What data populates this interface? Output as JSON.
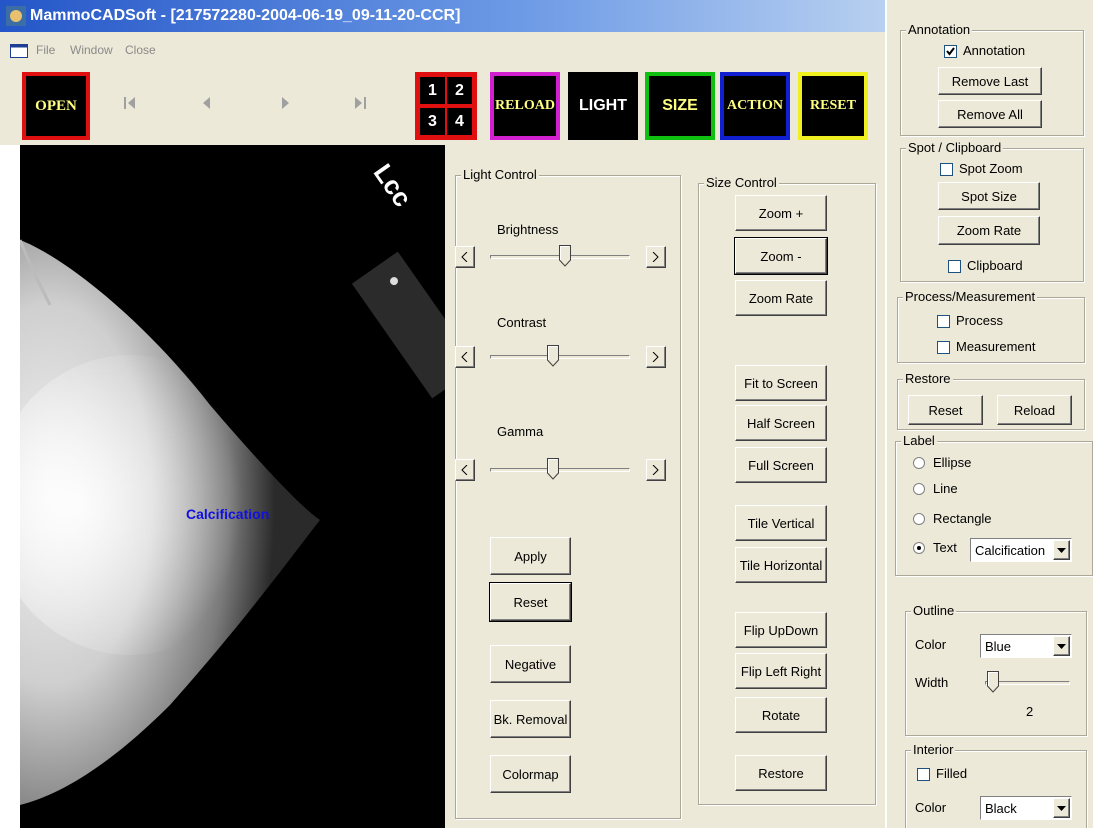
{
  "title_bar": {
    "title": "MammoCADSoft - [217572280-2004-06-19_09-11-20-CCR]"
  },
  "menu": [
    "File",
    "Window",
    "Close"
  ],
  "toolbar": {
    "open": "OPEN",
    "layout_numbers": [
      "1",
      "2",
      "3",
      "4"
    ],
    "buttons": [
      "RELOAD",
      "LIGHT",
      "SIZE",
      "ACTION",
      "RESET"
    ]
  },
  "image": {
    "view_label": "Lcc",
    "annotation": "Calcification"
  },
  "light_control": {
    "title": "Light Control",
    "sliders": [
      "Brightness",
      "Contrast",
      "Gamma"
    ],
    "buttons": [
      "Apply",
      "Reset",
      "Negative",
      "Bk. Removal",
      "Colormap"
    ]
  },
  "size_control": {
    "title": "Size Control",
    "buttons": [
      "Zoom +",
      "Zoom -",
      "Zoom Rate",
      "Fit to Screen",
      "Half Screen",
      "Full Screen",
      "Tile Vertical",
      "Tile Horizontal",
      "Flip UpDown",
      "Flip Left Right",
      "Rotate",
      "Restore"
    ]
  },
  "annotation": {
    "title": "Annotation",
    "checkbox": {
      "label": "Annotation",
      "checked": true
    },
    "buttons": [
      "Remove Last",
      "Remove All"
    ]
  },
  "spot_clipboard": {
    "title": "Spot / Clipboard",
    "spot_zoom": {
      "label": "Spot Zoom",
      "checked": false
    },
    "buttons": [
      "Spot Size",
      "Zoom Rate"
    ],
    "clipboard": {
      "label": "Clipboard",
      "checked": false
    }
  },
  "process_measurement": {
    "title": "Process/Measurement",
    "checkboxes": [
      {
        "label": "Process",
        "checked": false
      },
      {
        "label": "Measurement",
        "checked": false
      }
    ]
  },
  "restore": {
    "title": "Restore",
    "buttons": [
      "Reset",
      "Reload"
    ]
  },
  "label": {
    "title": "Label",
    "options": [
      "Ellipse",
      "Line",
      "Rectangle",
      "Text"
    ],
    "selected": 3,
    "text_value": "Calcification"
  },
  "outline": {
    "title": "Outline",
    "color_label": "Color",
    "color": "Blue",
    "width_label": "Width",
    "width": 2
  },
  "interior": {
    "title": "Interior",
    "filled": {
      "label": "Filled",
      "checked": false
    },
    "color_label": "Color",
    "color": "Black"
  }
}
